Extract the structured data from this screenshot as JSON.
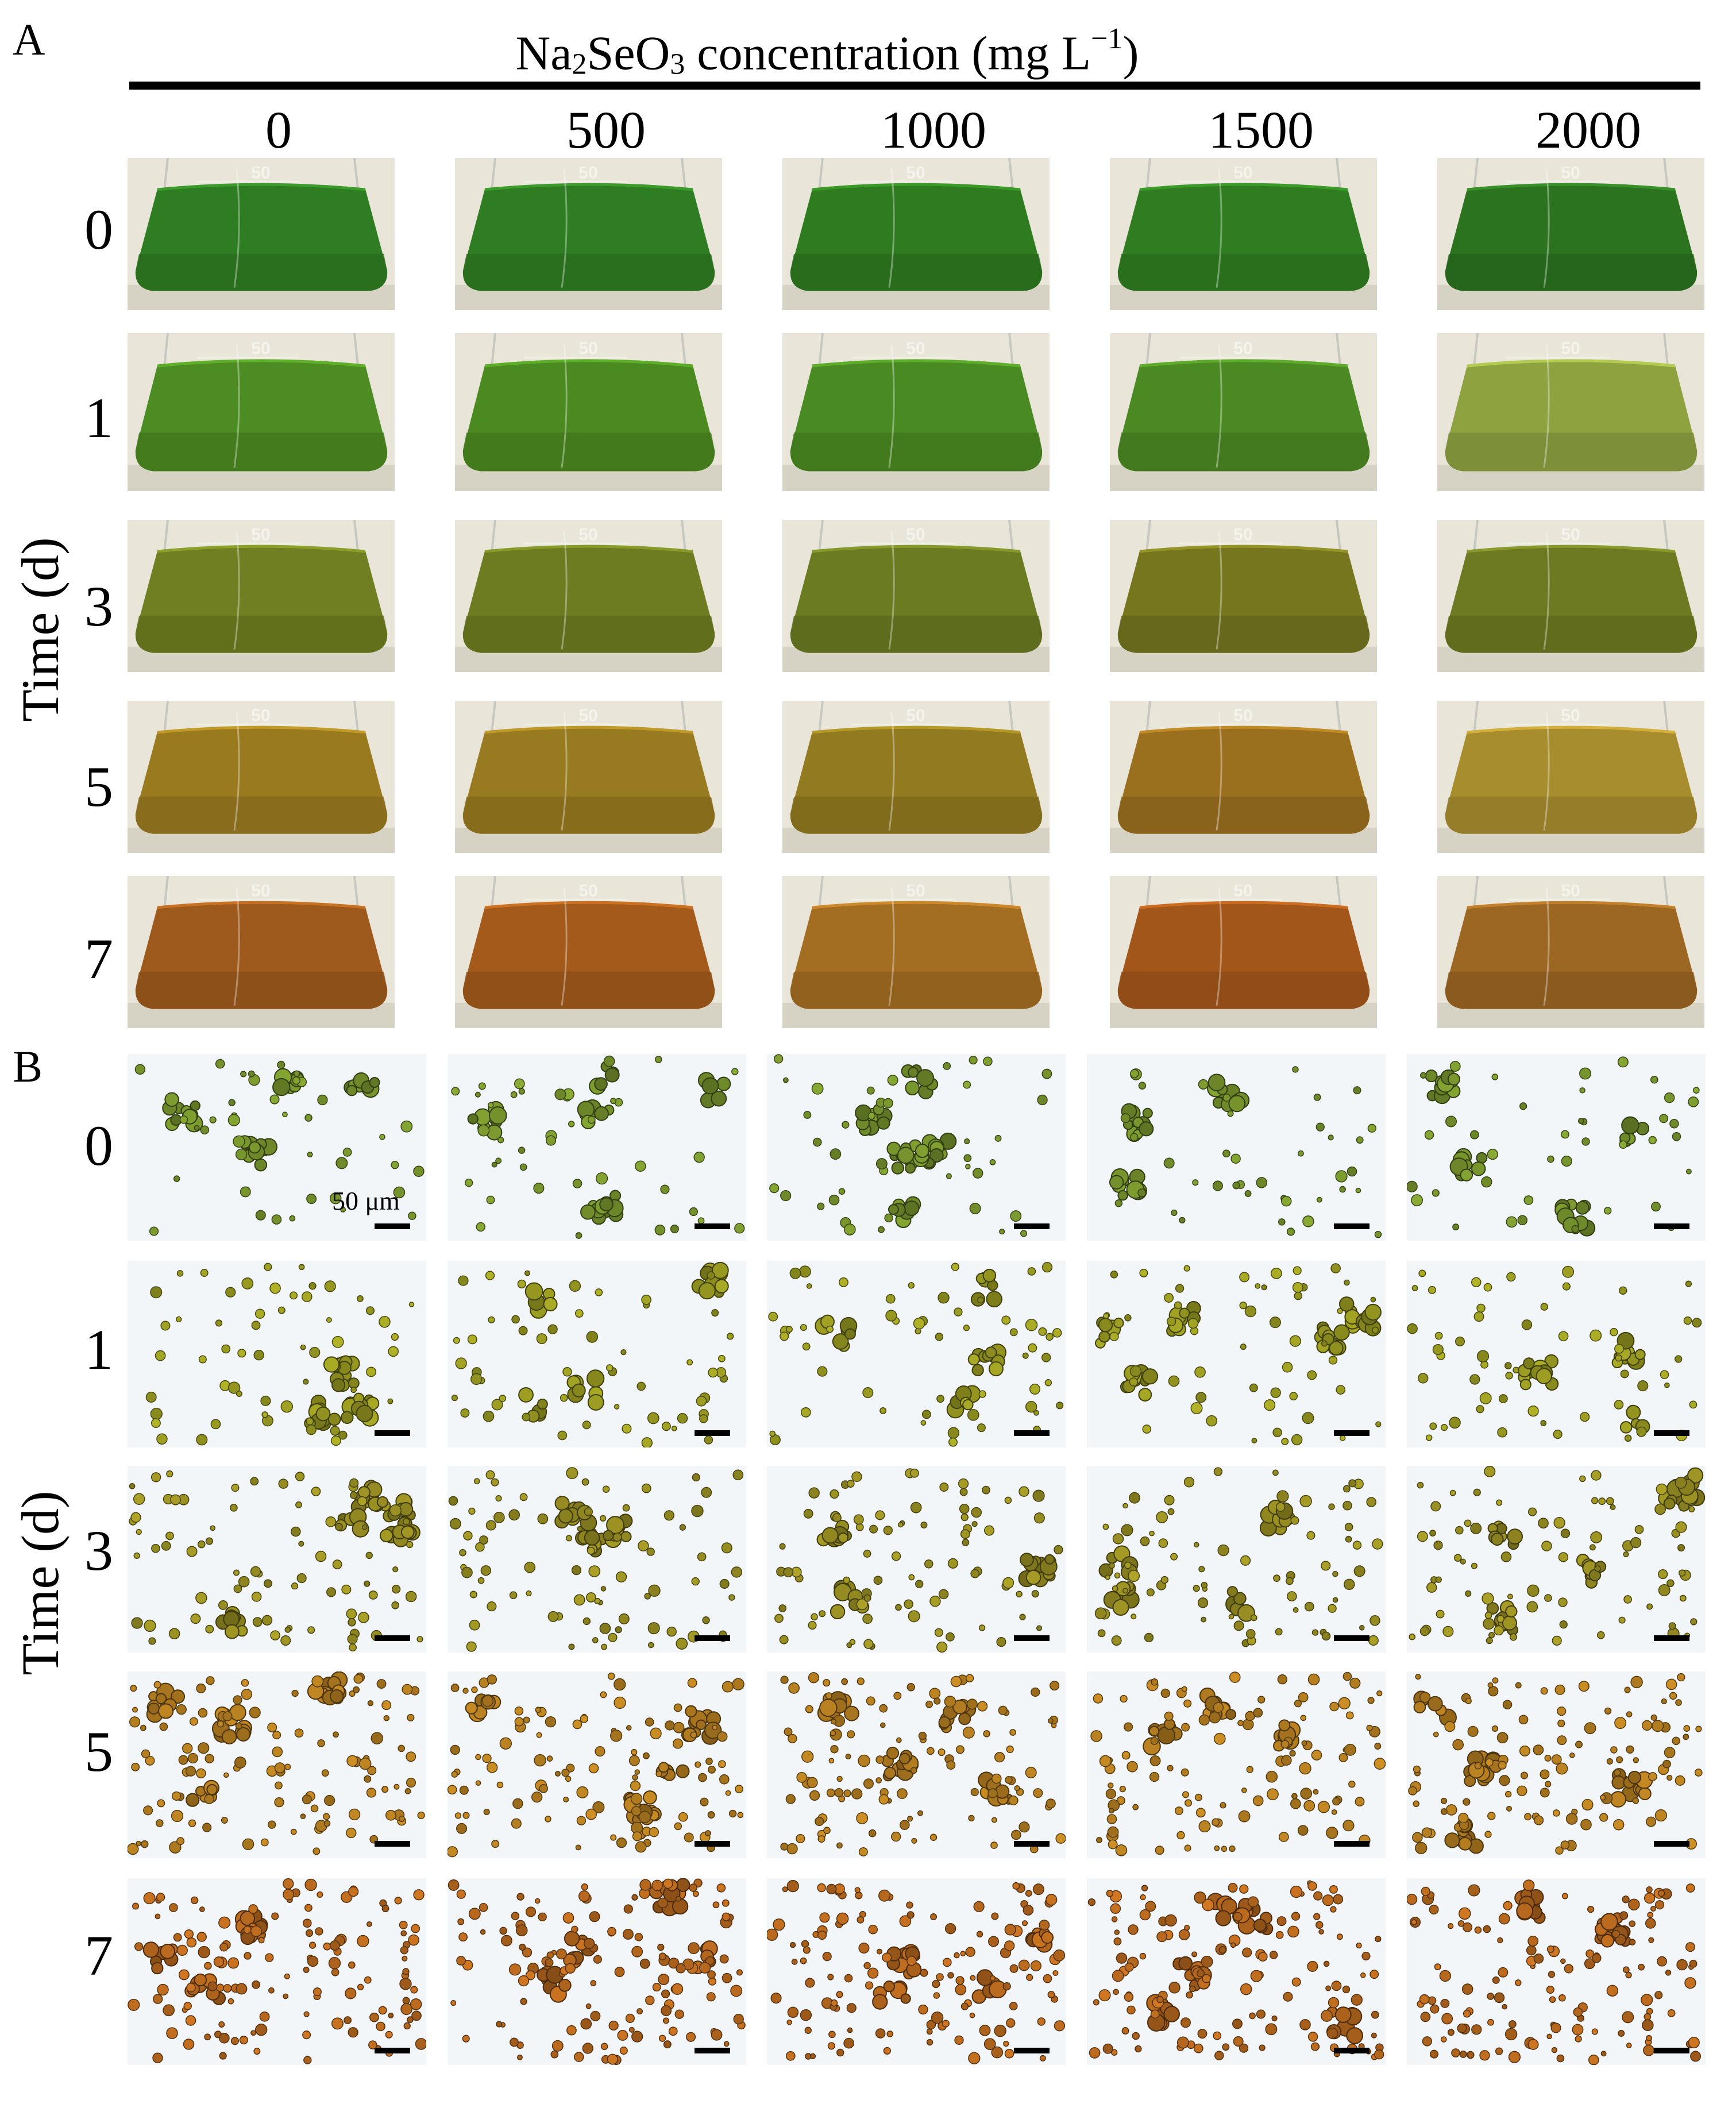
{
  "panel_a": {
    "letter": "A",
    "header_prefix": "Na",
    "header_sub1": "2",
    "header_mid": "SeO",
    "header_sub2": "3",
    "header_suffix": " concentration (mg L",
    "header_sup": "−1",
    "header_close": ")",
    "columns": [
      "0",
      "500",
      "1000",
      "1500",
      "2000"
    ],
    "rows": [
      "0",
      "1",
      "3",
      "5",
      "7"
    ],
    "axis_label": "Time (d)",
    "flask_mark": "50",
    "liquid_colors": [
      [
        "#2f7d22",
        "#2f7d22",
        "#2e7b20",
        "#2f7c21",
        "#2c7320"
      ],
      [
        "#4d8c22",
        "#4b8a21",
        "#4a8a22",
        "#4b8923",
        "#8ea240"
      ],
      [
        "#6f7f21",
        "#6d7c20",
        "#6a7b22",
        "#76761f",
        "#6e7a22"
      ],
      [
        "#9a7a1f",
        "#987a20",
        "#917a1f",
        "#9a6f1e",
        "#a88d2f"
      ],
      [
        "#9e5a1c",
        "#a35a1a",
        "#a36d22",
        "#a3561a",
        "#9c6623"
      ]
    ]
  },
  "panel_b": {
    "letter": "B",
    "rows": [
      "0",
      "1",
      "3",
      "5",
      "7"
    ],
    "axis_label": "Time (d)",
    "scale_label": "50 μm",
    "cell_colors": [
      "#6f8a2a",
      "#8e8f1f",
      "#8c8320",
      "#a6741e",
      "#a8601c"
    ]
  }
}
